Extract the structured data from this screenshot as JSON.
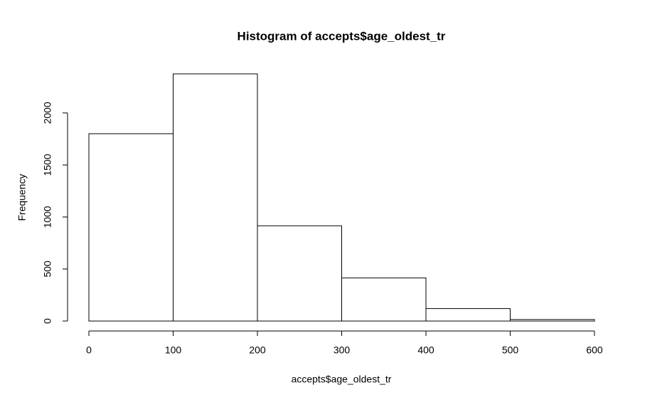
{
  "chart_data": {
    "type": "histogram",
    "title": "Histogram of accepts$age_oldest_tr",
    "x_label": "accepts$age_oldest_tr",
    "y_label": "Frequency",
    "bins": [
      0,
      100,
      200,
      300,
      400,
      500,
      600
    ],
    "values": [
      1800,
      2375,
      915,
      415,
      120,
      15
    ],
    "color": "#ffffff",
    "edgecolor": "#000000",
    "xlim": [
      0,
      600
    ],
    "ylim": [
      0,
      2375
    ],
    "xticks": [
      0,
      100,
      200,
      300,
      400,
      500,
      600
    ],
    "yticks": [
      0,
      500,
      1000,
      1500,
      2000
    ],
    "grid": false
  }
}
